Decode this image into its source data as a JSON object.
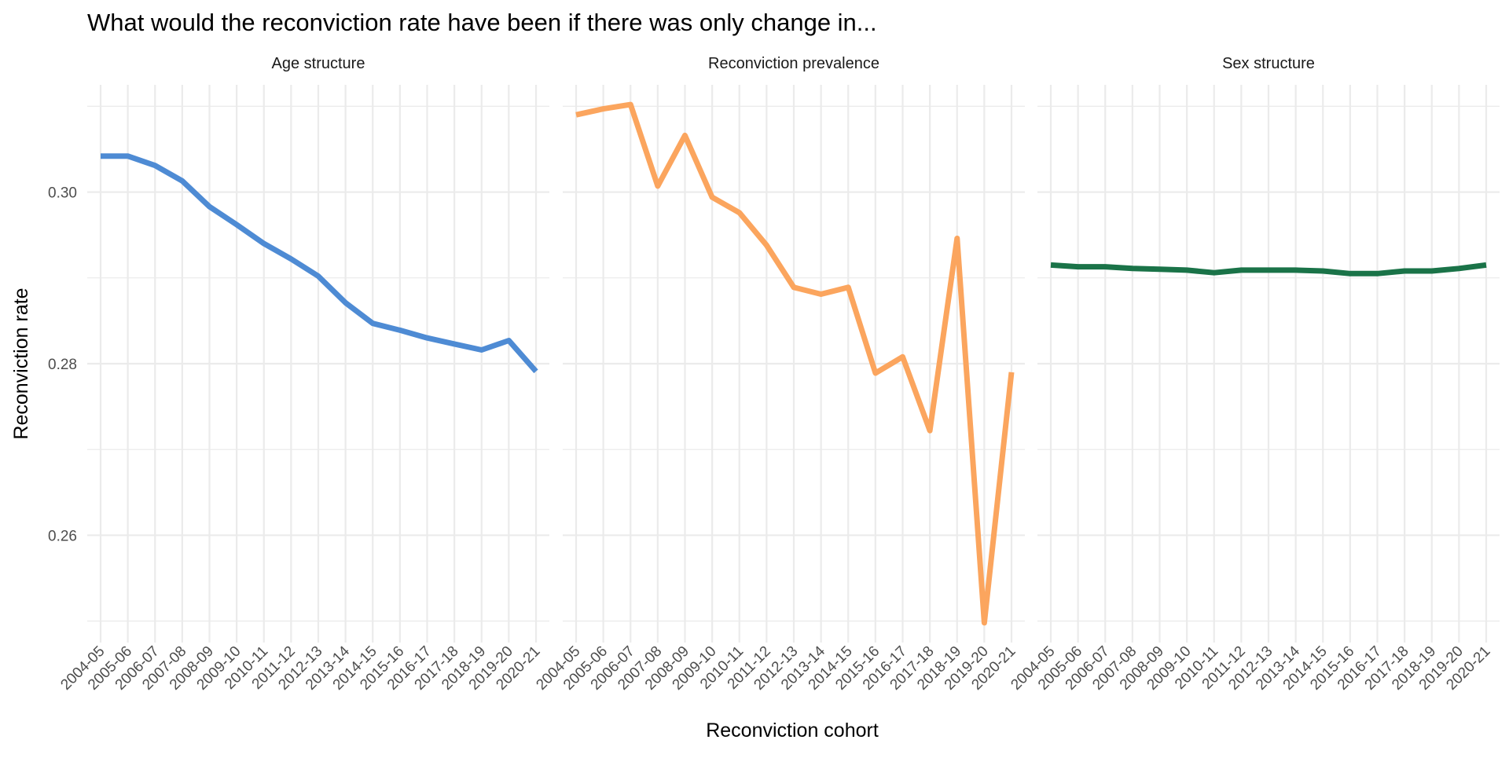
{
  "chart_data": {
    "type": "line",
    "title": "What would the reconviction rate have been if there was only change in...",
    "xlabel": "Reconviction cohort",
    "ylabel": "Reconviction rate",
    "grid": true,
    "legend": "none",
    "ylim": [
      0.2475,
      0.3125
    ],
    "y_ticks": [
      0.26,
      0.28,
      0.3
    ],
    "y_tick_labels": [
      "0.26",
      "0.28",
      "0.30"
    ],
    "categories": [
      "2004-05",
      "2005-06",
      "2006-07",
      "2007-08",
      "2008-09",
      "2009-10",
      "2010-11",
      "2011-12",
      "2012-13",
      "2013-14",
      "2014-15",
      "2015-16",
      "2016-17",
      "2017-18",
      "2018-19",
      "2019-20",
      "2020-21"
    ],
    "panels": [
      {
        "name": "Age structure",
        "color": "#4e8bd4",
        "values": [
          0.3042,
          0.3042,
          0.3031,
          0.3013,
          0.2983,
          0.2962,
          0.294,
          0.2922,
          0.2902,
          0.2871,
          0.2847,
          0.2839,
          0.283,
          0.2823,
          0.2816,
          0.2827,
          0.2791
        ]
      },
      {
        "name": "Reconviction prevalence",
        "color": "#fba55e",
        "values": [
          0.309,
          0.3097,
          0.3102,
          0.3007,
          0.3066,
          0.2994,
          0.2976,
          0.2938,
          0.2889,
          0.2881,
          0.2889,
          0.2789,
          0.2808,
          0.2722,
          0.2946,
          0.2498,
          0.279
        ]
      },
      {
        "name": "Sex structure",
        "color": "#1a7348",
        "values": [
          0.2915,
          0.2913,
          0.2913,
          0.2911,
          0.291,
          0.2909,
          0.2906,
          0.2909,
          0.2909,
          0.2909,
          0.2908,
          0.2905,
          0.2905,
          0.2908,
          0.2908,
          0.2911,
          0.2915
        ]
      }
    ]
  }
}
